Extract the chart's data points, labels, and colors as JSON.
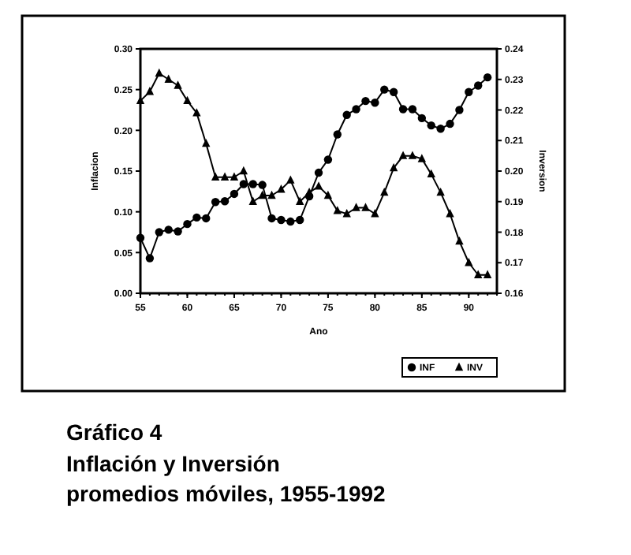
{
  "chart_data": {
    "type": "line",
    "title": "Gráfico 4",
    "subtitle": "Inflación y Inversión\npromedios móviles, 1955-1992",
    "xlabel": "Ano",
    "ylabel": "Inflacion",
    "y2label": "Inversion",
    "x": [
      55,
      56,
      57,
      58,
      59,
      60,
      61,
      62,
      63,
      64,
      65,
      66,
      67,
      68,
      69,
      70,
      71,
      72,
      73,
      74,
      75,
      76,
      77,
      78,
      79,
      80,
      81,
      82,
      83,
      84,
      85,
      86,
      87,
      88,
      89,
      90,
      91,
      92
    ],
    "series": [
      {
        "name": "INF",
        "color": "#000000",
        "marker": "circle",
        "values": [
          0.068,
          0.043,
          0.075,
          0.078,
          0.076,
          0.085,
          0.093,
          0.092,
          0.112,
          0.113,
          0.122,
          0.134,
          0.134,
          0.133,
          0.092,
          0.09,
          0.088,
          0.09,
          0.119,
          0.148,
          0.164,
          0.195,
          0.219,
          0.226,
          0.236,
          0.234,
          0.25,
          0.247,
          0.226,
          0.226,
          0.215,
          0.206,
          0.202,
          0.208,
          0.225,
          0.247,
          0.255,
          0.265
        ]
      },
      {
        "name": "INV",
        "color": "#000000",
        "marker": "triangle",
        "axis": "y2",
        "values": [
          0.223,
          0.226,
          0.232,
          0.23,
          0.228,
          0.223,
          0.219,
          0.209,
          0.198,
          0.198,
          0.198,
          0.2,
          0.19,
          0.192,
          0.192,
          0.194,
          0.197,
          0.19,
          0.193,
          0.195,
          0.192,
          0.187,
          0.186,
          0.188,
          0.188,
          0.186,
          0.193,
          0.201,
          0.205,
          0.205,
          0.204,
          0.199,
          0.193,
          0.186,
          0.177,
          0.17,
          0.166,
          0.166
        ]
      }
    ],
    "xlim": [
      55,
      93
    ],
    "xticks": [
      55,
      60,
      65,
      70,
      75,
      80,
      85,
      90
    ],
    "ylim": [
      0,
      0.3
    ],
    "yticks": [
      {
        "value": 0,
        "label": "0.00"
      },
      {
        "value": 0.05,
        "label": "0.05"
      },
      {
        "value": 0.1,
        "label": "0.10"
      },
      {
        "value": 0.15,
        "label": "0.15"
      },
      {
        "value": 0.2,
        "label": "0.20"
      },
      {
        "value": 0.25,
        "label": "0.25"
      },
      {
        "value": 0.3,
        "label": "0.30"
      }
    ],
    "y2lim": [
      0.16,
      0.24
    ],
    "y2ticks": [
      {
        "value": 0.16,
        "label": "0.16"
      },
      {
        "value": 0.17,
        "label": "0.17"
      },
      {
        "value": 0.18,
        "label": "0.18"
      },
      {
        "value": 0.19,
        "label": "0.19"
      },
      {
        "value": 0.2,
        "label": "0.20"
      },
      {
        "value": 0.21,
        "label": "0.21"
      },
      {
        "value": 0.22,
        "label": "0.22"
      },
      {
        "value": 0.23,
        "label": "0.23"
      },
      {
        "value": 0.24,
        "label": "0.24"
      }
    ],
    "grid": false,
    "legend": "bottom right",
    "line_style": "solid"
  }
}
